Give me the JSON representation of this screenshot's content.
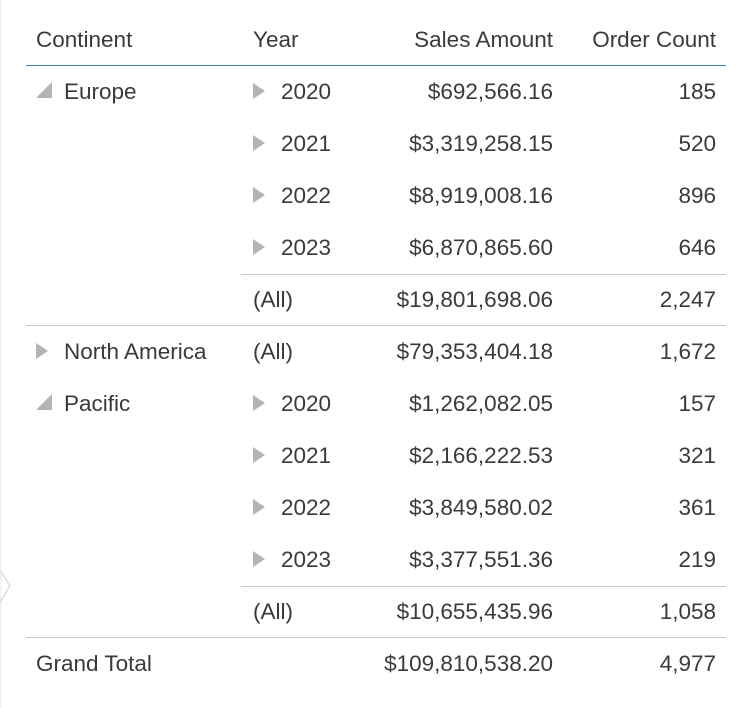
{
  "table": {
    "headers": {
      "continent": "Continent",
      "year": "Year",
      "sales": "Sales Amount",
      "orders": "Order Count"
    },
    "groups": {
      "europe": {
        "name": "Europe",
        "rows": [
          {
            "year": "2020",
            "sales": "$692,566.16",
            "orders": "185"
          },
          {
            "year": "2021",
            "sales": "$3,319,258.15",
            "orders": "520"
          },
          {
            "year": "2022",
            "sales": "$8,919,008.16",
            "orders": "896"
          },
          {
            "year": "2023",
            "sales": "$6,870,865.60",
            "orders": "646"
          }
        ],
        "subtotal": {
          "year": "(All)",
          "sales": "$19,801,698.06",
          "orders": "2,247"
        }
      },
      "north_america": {
        "name": "North America",
        "subtotal": {
          "year": "(All)",
          "sales": "$79,353,404.18",
          "orders": "1,672"
        }
      },
      "pacific": {
        "name": "Pacific",
        "rows": [
          {
            "year": "2020",
            "sales": "$1,262,082.05",
            "orders": "157"
          },
          {
            "year": "2021",
            "sales": "$2,166,222.53",
            "orders": "321"
          },
          {
            "year": "2022",
            "sales": "$3,849,580.02",
            "orders": "361"
          },
          {
            "year": "2023",
            "sales": "$3,377,551.36",
            "orders": "219"
          }
        ],
        "subtotal": {
          "year": "(All)",
          "sales": "$10,655,435.96",
          "orders": "1,058"
        }
      }
    },
    "grand_total": {
      "label": "Grand Total",
      "sales": "$109,810,538.20",
      "orders": "4,977"
    }
  },
  "colors": {
    "header_rule": "#3c7fc0",
    "divider": "#c9c9c9",
    "expander": "#b4b4b4",
    "text": "#3a3a3a"
  },
  "icons": {
    "expanded": "caret-expanded-icon",
    "collapsed": "caret-collapsed-icon"
  }
}
